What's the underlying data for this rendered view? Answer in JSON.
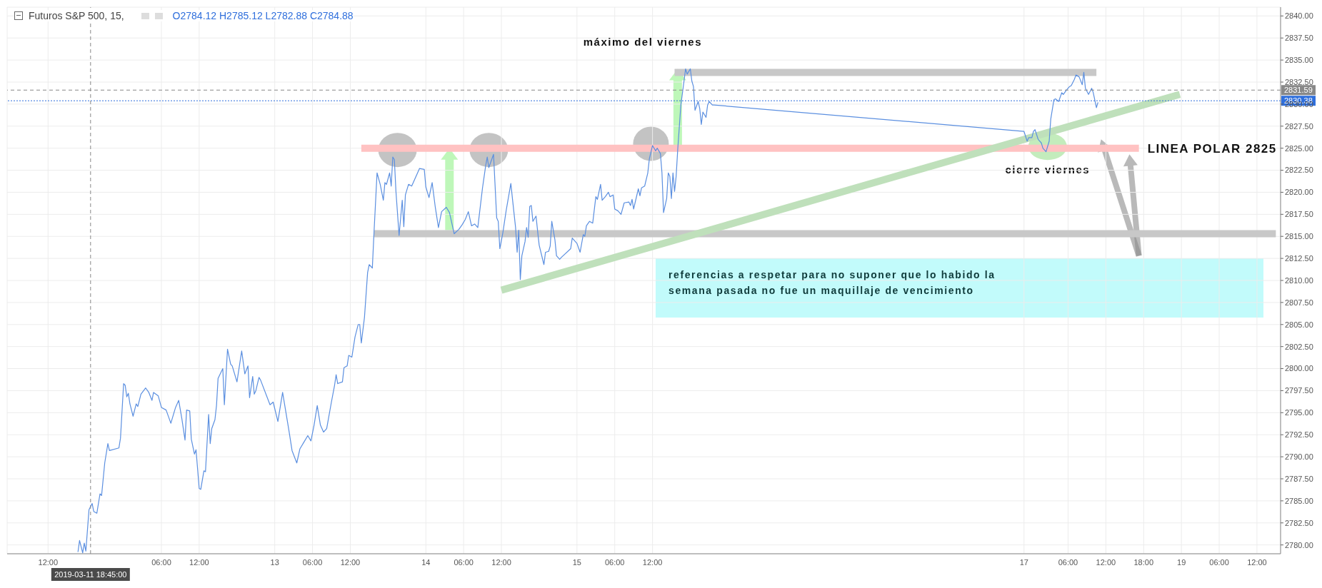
{
  "chart_data": {
    "type": "line",
    "title": "Futuros S&P 500, 15,",
    "subtitle": "O2784.12 H2785.12 L2782.88 C2784.88",
    "xlim": [
      "2019-03-11T05:30",
      "2019-03-19T15:45"
    ],
    "ylim": [
      2779,
      2841
    ],
    "xticks": [
      {
        "value": "2019-03-11T12:00",
        "label": "12:00"
      },
      {
        "value": "2019-03-12T06:00",
        "label": "06:00"
      },
      {
        "value": "2019-03-12T12:00",
        "label": "12:00"
      },
      {
        "value": "2019-03-13T00:00",
        "label": "13"
      },
      {
        "value": "2019-03-13T06:00",
        "label": "06:00"
      },
      {
        "value": "2019-03-13T12:00",
        "label": "12:00"
      },
      {
        "value": "2019-03-14T00:00",
        "label": "14"
      },
      {
        "value": "2019-03-14T06:00",
        "label": "06:00"
      },
      {
        "value": "2019-03-14T12:00",
        "label": "12:00"
      },
      {
        "value": "2019-03-15T00:00",
        "label": "15"
      },
      {
        "value": "2019-03-15T06:00",
        "label": "06:00"
      },
      {
        "value": "2019-03-15T12:00",
        "label": "12:00"
      },
      {
        "value": "2019-03-17T23:00",
        "label": "17"
      },
      {
        "value": "2019-03-18T06:00",
        "label": "06:00"
      },
      {
        "value": "2019-03-18T12:00",
        "label": "12:00"
      },
      {
        "value": "2019-03-18T18:00",
        "label": "18:00"
      },
      {
        "value": "2019-03-19T00:00",
        "label": "19"
      },
      {
        "value": "2019-03-19T06:00",
        "label": "06:00"
      },
      {
        "value": "2019-03-19T12:00",
        "label": "12:00"
      }
    ],
    "yticks": [
      {
        "value": 2780,
        "label": "2780.00"
      },
      {
        "value": 2782.5,
        "label": "2782.50"
      },
      {
        "value": 2785,
        "label": "2785.00"
      },
      {
        "value": 2787.5,
        "label": "2787.50"
      },
      {
        "value": 2790,
        "label": "2790.00"
      },
      {
        "value": 2792.5,
        "label": "2792.50"
      },
      {
        "value": 2795,
        "label": "2795.00"
      },
      {
        "value": 2797.5,
        "label": "2797.50"
      },
      {
        "value": 2800,
        "label": "2800.00"
      },
      {
        "value": 2802.5,
        "label": "2802.50"
      },
      {
        "value": 2805,
        "label": "2805.00"
      },
      {
        "value": 2807.5,
        "label": "2807.50"
      },
      {
        "value": 2810,
        "label": "2810.00"
      },
      {
        "value": 2812.5,
        "label": "2812.50"
      },
      {
        "value": 2815,
        "label": "2815.00"
      },
      {
        "value": 2817.5,
        "label": "2817.50"
      },
      {
        "value": 2820,
        "label": "2820.00"
      },
      {
        "value": 2822.5,
        "label": "2822.50"
      },
      {
        "value": 2825,
        "label": "2825.00"
      },
      {
        "value": 2827.5,
        "label": "2827.50"
      },
      {
        "value": 2830,
        "label": "2830.00"
      },
      {
        "value": 2832.5,
        "label": "2832.50"
      },
      {
        "value": 2835,
        "label": "2835.00"
      },
      {
        "value": 2837.5,
        "label": "2837.50"
      },
      {
        "value": 2840,
        "label": "2840.00"
      }
    ],
    "grid": true,
    "line_style": "solid",
    "series": [
      {
        "name": "LINEA POLAR 2825",
        "color": "#ffc2c2",
        "x": [
          "2019-03-13T13:45",
          "2019-03-18T17:15"
        ],
        "values": [
          2825,
          2825
        ]
      },
      {
        "color": "#c8c8c8",
        "x": [
          "2019-03-13T15:45",
          "2019-03-19T15:00"
        ],
        "values": [
          2815.3,
          2815.3
        ]
      },
      {
        "color": "#c8c8c8",
        "x": [
          "2019-03-15T15:30",
          "2019-03-18T10:30"
        ],
        "values": [
          2833.6,
          2833.6
        ]
      },
      {
        "color": "#bfe0bb",
        "x": [
          "2019-03-14T12:00",
          "2019-03-18T23:45"
        ],
        "values": [
          2808.9,
          2831.1
        ]
      },
      {
        "color": "#5b8fe0",
        "x": [
          "2019-03-11T16:45",
          "2019-03-11T17:00",
          "2019-03-11T17:30",
          "2019-03-11T17:45",
          "2019-03-11T18:00",
          "2019-03-11T18:30",
          "2019-03-11T19:00",
          "2019-03-11T19:15",
          "2019-03-11T19:45",
          "2019-03-11T20:15",
          "2019-03-11T20:30",
          "2019-03-11T21:00",
          "2019-03-11T21:30",
          "2019-03-11T21:45",
          "2019-03-11T23:15",
          "2019-03-11T23:30",
          "2019-03-12T00:00",
          "2019-03-12T00:15",
          "2019-03-12T00:30",
          "2019-03-12T00:45",
          "2019-03-12T01:00",
          "2019-03-12T01:30",
          "2019-03-12T02:00",
          "2019-03-12T02:15",
          "2019-03-12T02:45",
          "2019-03-12T03:30",
          "2019-03-12T04:00",
          "2019-03-12T04:30",
          "2019-03-12T04:45",
          "2019-03-12T05:30",
          "2019-03-12T06:00",
          "2019-03-12T06:45",
          "2019-03-12T07:30",
          "2019-03-12T08:15",
          "2019-03-12T08:45",
          "2019-03-12T09:15",
          "2019-03-12T09:45",
          "2019-03-12T10:00",
          "2019-03-12T10:30",
          "2019-03-12T10:45",
          "2019-03-12T11:15",
          "2019-03-12T11:30",
          "2019-03-12T12:00",
          "2019-03-12T12:15",
          "2019-03-12T12:45",
          "2019-03-12T13:00",
          "2019-03-12T13:30",
          "2019-03-12T13:45",
          "2019-03-12T14:00",
          "2019-03-12T14:30",
          "2019-03-12T14:45",
          "2019-03-12T15:00",
          "2019-03-12T15:45",
          "2019-03-12T16:00",
          "2019-03-12T16:30",
          "2019-03-12T17:00",
          "2019-03-12T17:15",
          "2019-03-12T18:00",
          "2019-03-12T18:45",
          "2019-03-12T19:15",
          "2019-03-12T19:45",
          "2019-03-12T20:00",
          "2019-03-12T20:30",
          "2019-03-12T20:45",
          "2019-03-12T21:00",
          "2019-03-12T21:30",
          "2019-03-12T21:45",
          "2019-03-12T23:15",
          "2019-03-12T23:45",
          "2019-03-13T00:30",
          "2019-03-13T01:15",
          "2019-03-13T02:15",
          "2019-03-13T02:45",
          "2019-03-13T03:30",
          "2019-03-13T04:00",
          "2019-03-13T04:45",
          "2019-03-13T05:15",
          "2019-03-13T05:45",
          "2019-03-13T06:15",
          "2019-03-13T06:45",
          "2019-03-13T07:15",
          "2019-03-13T07:45",
          "2019-03-13T08:15",
          "2019-03-13T09:00",
          "2019-03-13T09:30",
          "2019-03-13T09:45",
          "2019-03-13T10:00",
          "2019-03-13T10:45",
          "2019-03-13T11:00",
          "2019-03-13T11:30",
          "2019-03-13T11:45",
          "2019-03-13T12:15",
          "2019-03-13T12:45",
          "2019-03-13T13:15",
          "2019-03-13T13:30",
          "2019-03-13T13:45",
          "2019-03-13T14:15",
          "2019-03-13T14:45",
          "2019-03-13T15:00",
          "2019-03-13T15:30",
          "2019-03-13T15:45",
          "2019-03-13T16:15",
          "2019-03-13T16:45",
          "2019-03-13T17:15",
          "2019-03-13T17:30",
          "2019-03-13T17:45",
          "2019-03-13T18:15",
          "2019-03-13T18:30",
          "2019-03-13T18:45",
          "2019-03-13T19:00",
          "2019-03-13T19:15",
          "2019-03-13T19:45",
          "2019-03-13T20:15",
          "2019-03-13T20:30",
          "2019-03-13T20:45",
          "2019-03-13T21:15",
          "2019-03-13T21:45",
          "2019-03-13T23:00",
          "2019-03-13T23:45",
          "2019-03-14T00:00",
          "2019-03-14T00:30",
          "2019-03-14T01:00",
          "2019-03-14T01:30",
          "2019-03-14T02:00",
          "2019-03-14T02:30",
          "2019-03-14T03:15",
          "2019-03-14T03:45",
          "2019-03-14T04:00",
          "2019-03-14T04:30",
          "2019-03-14T05:15",
          "2019-03-14T05:45",
          "2019-03-14T06:15",
          "2019-03-14T06:45",
          "2019-03-14T07:15",
          "2019-03-14T07:45",
          "2019-03-14T08:15",
          "2019-03-14T09:00",
          "2019-03-14T09:30",
          "2019-03-14T09:45",
          "2019-03-14T10:00",
          "2019-03-14T10:30",
          "2019-03-14T10:45",
          "2019-03-14T11:15",
          "2019-03-14T11:30",
          "2019-03-14T11:45",
          "2019-03-14T12:15",
          "2019-03-14T12:45",
          "2019-03-14T13:30",
          "2019-03-14T13:45",
          "2019-03-14T14:15",
          "2019-03-14T14:30",
          "2019-03-14T14:45",
          "2019-03-14T15:00",
          "2019-03-14T15:15",
          "2019-03-14T15:45",
          "2019-03-14T16:00",
          "2019-03-14T16:15",
          "2019-03-14T16:30",
          "2019-03-14T16:45",
          "2019-03-14T17:00",
          "2019-03-14T17:30",
          "2019-03-14T17:45",
          "2019-03-14T18:00",
          "2019-03-14T18:45",
          "2019-03-14T19:00",
          "2019-03-14T19:30",
          "2019-03-14T19:45",
          "2019-03-14T20:00",
          "2019-03-14T20:30",
          "2019-03-14T20:45",
          "2019-03-14T21:15",
          "2019-03-14T21:30",
          "2019-03-14T23:00",
          "2019-03-14T23:15",
          "2019-03-14T23:45",
          "2019-03-15T00:00",
          "2019-03-15T00:30",
          "2019-03-15T01:00",
          "2019-03-15T01:15",
          "2019-03-15T01:30",
          "2019-03-15T02:00",
          "2019-03-15T02:30",
          "2019-03-15T03:00",
          "2019-03-15T03:15",
          "2019-03-15T03:45",
          "2019-03-15T04:00",
          "2019-03-15T04:30",
          "2019-03-15T05:00",
          "2019-03-15T05:15",
          "2019-03-15T05:45",
          "2019-03-15T06:00",
          "2019-03-15T06:30",
          "2019-03-15T07:00",
          "2019-03-15T07:30",
          "2019-03-15T08:15",
          "2019-03-15T08:30",
          "2019-03-15T08:45",
          "2019-03-15T09:00",
          "2019-03-15T09:45",
          "2019-03-15T10:00",
          "2019-03-15T10:15",
          "2019-03-15T10:45",
          "2019-03-15T11:15",
          "2019-03-15T11:30",
          "2019-03-15T12:00",
          "2019-03-15T12:30",
          "2019-03-15T12:45",
          "2019-03-15T13:15",
          "2019-03-15T13:30",
          "2019-03-15T13:45",
          "2019-03-15T14:15",
          "2019-03-15T14:30",
          "2019-03-15T14:45",
          "2019-03-15T15:00",
          "2019-03-15T15:15",
          "2019-03-15T15:30",
          "2019-03-15T15:45",
          "2019-03-15T16:00",
          "2019-03-15T16:30",
          "2019-03-15T17:00",
          "2019-03-15T17:15",
          "2019-03-15T17:30",
          "2019-03-15T18:00",
          "2019-03-15T18:15",
          "2019-03-15T18:30",
          "2019-03-15T18:45",
          "2019-03-15T19:15",
          "2019-03-15T19:30",
          "2019-03-15T19:45",
          "2019-03-15T20:00",
          "2019-03-15T20:30",
          "2019-03-15T20:45",
          "2019-03-15T21:00",
          "2019-03-15T21:30",
          "2019-03-15T21:45",
          "2019-03-17T23:00",
          "2019-03-17T23:30",
          "2019-03-17T23:45",
          "2019-03-18T00:15",
          "2019-03-18T00:30",
          "2019-03-18T00:45",
          "2019-03-18T01:15",
          "2019-03-18T01:45",
          "2019-03-18T02:00",
          "2019-03-18T02:30",
          "2019-03-18T03:00",
          "2019-03-18T03:15",
          "2019-03-18T03:45",
          "2019-03-18T04:00",
          "2019-03-18T04:30",
          "2019-03-18T05:00",
          "2019-03-18T05:15",
          "2019-03-18T05:45",
          "2019-03-18T06:15",
          "2019-03-18T06:30",
          "2019-03-18T07:00",
          "2019-03-18T07:15",
          "2019-03-18T07:45",
          "2019-03-18T08:15",
          "2019-03-18T08:30",
          "2019-03-18T08:45",
          "2019-03-18T09:15",
          "2019-03-18T09:45",
          "2019-03-18T10:00",
          "2019-03-18T10:30",
          "2019-03-18T10:45"
        ],
        "values": [
          2779.2,
          2780.5,
          2779.1,
          2780.2,
          2779.3,
          2784.0,
          2784.7,
          2783.8,
          2783.6,
          2785.8,
          2785.6,
          2789.3,
          2791.5,
          2790.7,
          2791.0,
          2792.1,
          2798.3,
          2798.1,
          2796.8,
          2797.2,
          2796.0,
          2794.6,
          2796.0,
          2795.7,
          2797.1,
          2797.8,
          2797.3,
          2796.4,
          2797.3,
          2796.9,
          2795.6,
          2795.3,
          2793.8,
          2795.6,
          2796.4,
          2794.3,
          2791.9,
          2795.3,
          2795.2,
          2792.0,
          2790.3,
          2790.8,
          2786.4,
          2786.3,
          2788.4,
          2788.3,
          2794.8,
          2791.5,
          2793.2,
          2794.2,
          2795.8,
          2798.9,
          2800.0,
          2795.9,
          2802.2,
          2800.5,
          2800.3,
          2798.5,
          2802.0,
          2799.4,
          2800.3,
          2796.7,
          2799.1,
          2797.1,
          2797.5,
          2799.0,
          2798.7,
          2795.9,
          2796.2,
          2794.0,
          2797.3,
          2793.0,
          2790.7,
          2789.3,
          2790.9,
          2791.8,
          2792.4,
          2791.8,
          2793.6,
          2795.8,
          2793.6,
          2792.8,
          2793.2,
          2796.2,
          2798.1,
          2799.3,
          2798.3,
          2798.5,
          2800.1,
          2800.3,
          2801.5,
          2801.3,
          2803.6,
          2805.0,
          2805.0,
          2802.9,
          2805.8,
          2810.9,
          2811.8,
          2811.4,
          2815.2,
          2822.2,
          2820.9,
          2819.1,
          2821.1,
          2820.9,
          2822.2,
          2820.7,
          2824.0,
          2823.7,
          2820.1,
          2815.1,
          2819.1,
          2816.1,
          2819.7,
          2820.9,
          2820.7,
          2822.7,
          2822.6,
          2820.6,
          2819.4,
          2821.1,
          2818.3,
          2816.0,
          2817.8,
          2818.3,
          2817.7,
          2816.9,
          2815.3,
          2815.8,
          2816.3,
          2816.9,
          2817.8,
          2816.2,
          2816.4,
          2816.0,
          2820.5,
          2823.0,
          2824.0,
          2822.8,
          2823.8,
          2824.3,
          2817.1,
          2816.7,
          2813.6,
          2815.5,
          2817.9,
          2821.0,
          2819.3,
          2816.0,
          2813.2,
          2815.7,
          2810.1,
          2812.8,
          2814.4,
          2816.0,
          2814.9,
          2818.4,
          2818.5,
          2816.7,
          2817.3,
          2815.6,
          2814.0,
          2811.8,
          2813.2,
          2813.3,
          2813.9,
          2816.7,
          2814.6,
          2812.8,
          2812.4,
          2812.6,
          2813.6,
          2814.8,
          2814.4,
          2814.2,
          2813.2,
          2815.2,
          2815.0,
          2816.2,
          2816.7,
          2816.5,
          2819.5,
          2819.2,
          2820.9,
          2819.1,
          2819.5,
          2820.0,
          2819.5,
          2819.7,
          2818.1,
          2817.9,
          2817.5,
          2818.8,
          2818.9,
          2818.5,
          2819.2,
          2818.1,
          2820.4,
          2819.6,
          2820.5,
          2820.7,
          2822.2,
          2823.8,
          2825.3,
          2824.7,
          2825.0,
          2824.4,
          2822.2,
          2817.7,
          2819.3,
          2822.2,
          2821.8,
          2819.3,
          2822.2,
          2820.1,
          2821.8,
          2824.8,
          2829.9,
          2832.6,
          2834.0,
          2833.4,
          2834.0,
          2832.6,
          2832.0,
          2829.3,
          2830.3,
          2829.5,
          2827.7,
          2829.1,
          2828.5,
          2829.9,
          2830.3,
          2829.9,
          2829.9,
          2826.9,
          2825.8,
          2826.2,
          2826.2,
          2826.9,
          2827.1,
          2826.0,
          2825.6,
          2825.0,
          2824.6,
          2825.8,
          2828.3,
          2830.5,
          2830.6,
          2830.3,
          2831.3,
          2831.1,
          2831.6,
          2832.0,
          2832.1,
          2832.8,
          2833.3,
          2833.1,
          2832.2,
          2833.6,
          2831.8,
          2831.1,
          2831.8,
          2831.3,
          2829.6,
          2830.2
        ]
      }
    ],
    "ref_lines": [
      {
        "axis": "y",
        "value": 2831.59,
        "label": "2831.59",
        "color": "#888888",
        "line_style": "dashed"
      },
      {
        "axis": "y",
        "value": 2830.38,
        "label": "2830.38",
        "color": "#2f6fdc",
        "line_style": "dotted"
      },
      {
        "axis": "x",
        "value": "2019-03-11T18:45",
        "label": "2019-03-11 18:45:00",
        "color": "#888888",
        "line_style": "dashed"
      }
    ],
    "annotations": [
      {
        "text": "máximo del viernes",
        "x": "2019-03-15T17:15",
        "y": 2834.0
      },
      "cierre viernes",
      "referencias a respetar para no suponer que lo habido la semana pasada no fue un maquillaje de vencimiento"
    ]
  }
}
